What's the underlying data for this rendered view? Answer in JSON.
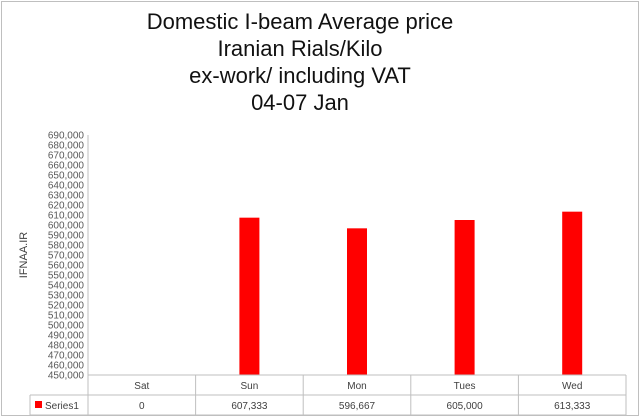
{
  "chart_data": {
    "type": "bar",
    "title_lines": [
      "Domestic I-beam Average price",
      "Iranian Rials/Kilo",
      "ex-work/ including VAT",
      "04-07 Jan"
    ],
    "ylabel": "IFNAA.IR",
    "xlabel": "",
    "ylim": [
      450000,
      690000
    ],
    "ytick_step": 10000,
    "yticks": [
      "690,000",
      "680,000",
      "670,000",
      "660,000",
      "650,000",
      "640,000",
      "630,000",
      "620,000",
      "610,000",
      "600,000",
      "590,000",
      "580,000",
      "570,000",
      "560,000",
      "550,000",
      "540,000",
      "530,000",
      "520,000",
      "510,000",
      "500,000",
      "490,000",
      "480,000",
      "470,000",
      "460,000",
      "450,000"
    ],
    "categories": [
      "Sat",
      "Sun",
      "Mon",
      "Tues",
      "Wed"
    ],
    "series": [
      {
        "name": "Series1",
        "values": [
          0,
          607333,
          596667,
          605000,
          613333
        ],
        "value_labels": [
          "0",
          "607,333",
          "596,667",
          "605,000",
          "613,333"
        ],
        "color": "#ff0000"
      }
    ],
    "data_table": true,
    "gridlines": false
  }
}
